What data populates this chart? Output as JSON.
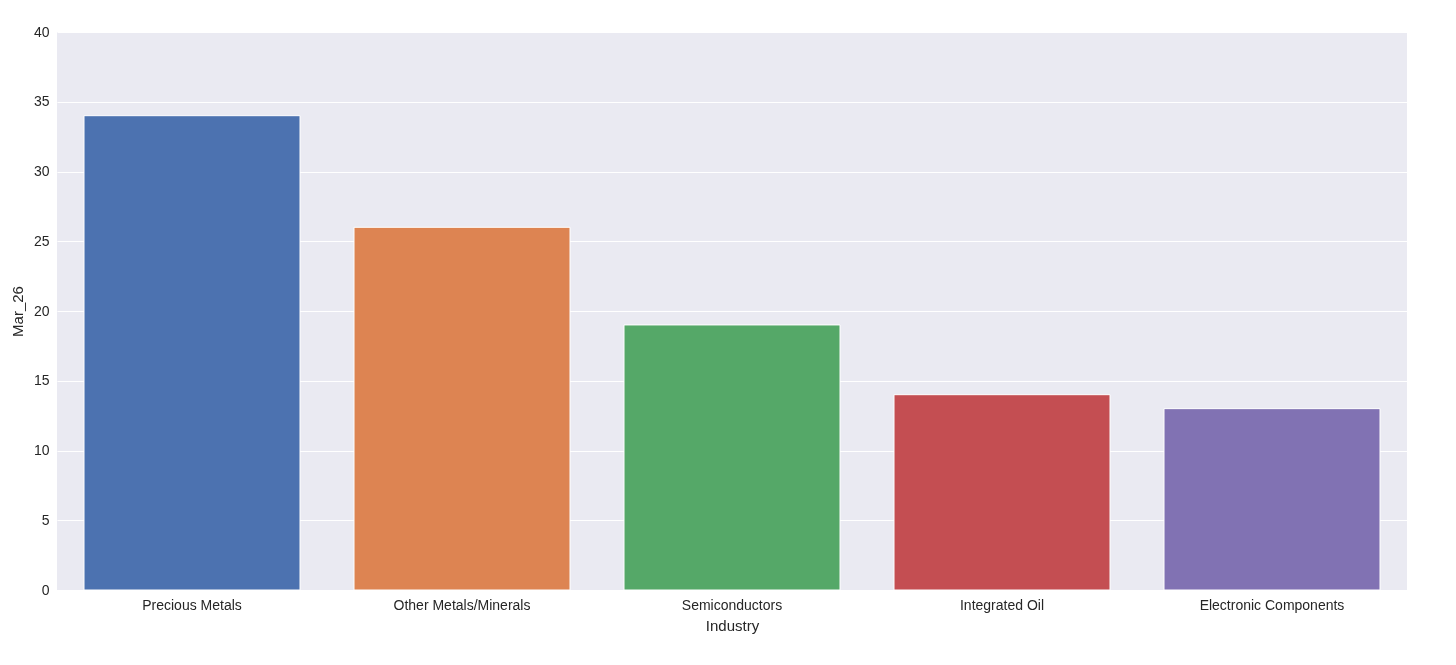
{
  "chart_data": {
    "type": "bar",
    "xlabel": "Industry",
    "ylabel": "Mar_26",
    "categories": [
      "Precious Metals",
      "Other Metals/Minerals",
      "Semiconductors",
      "Integrated Oil",
      "Electronic Components"
    ],
    "values": [
      34,
      26,
      19,
      14,
      13
    ],
    "colors": [
      "#4c72b0",
      "#dd8452",
      "#55a868",
      "#c44e52",
      "#8172b3"
    ],
    "ylim": [
      0,
      40
    ],
    "yticks": [
      0,
      5,
      10,
      15,
      20,
      25,
      30,
      35,
      40
    ],
    "grid": "y"
  }
}
